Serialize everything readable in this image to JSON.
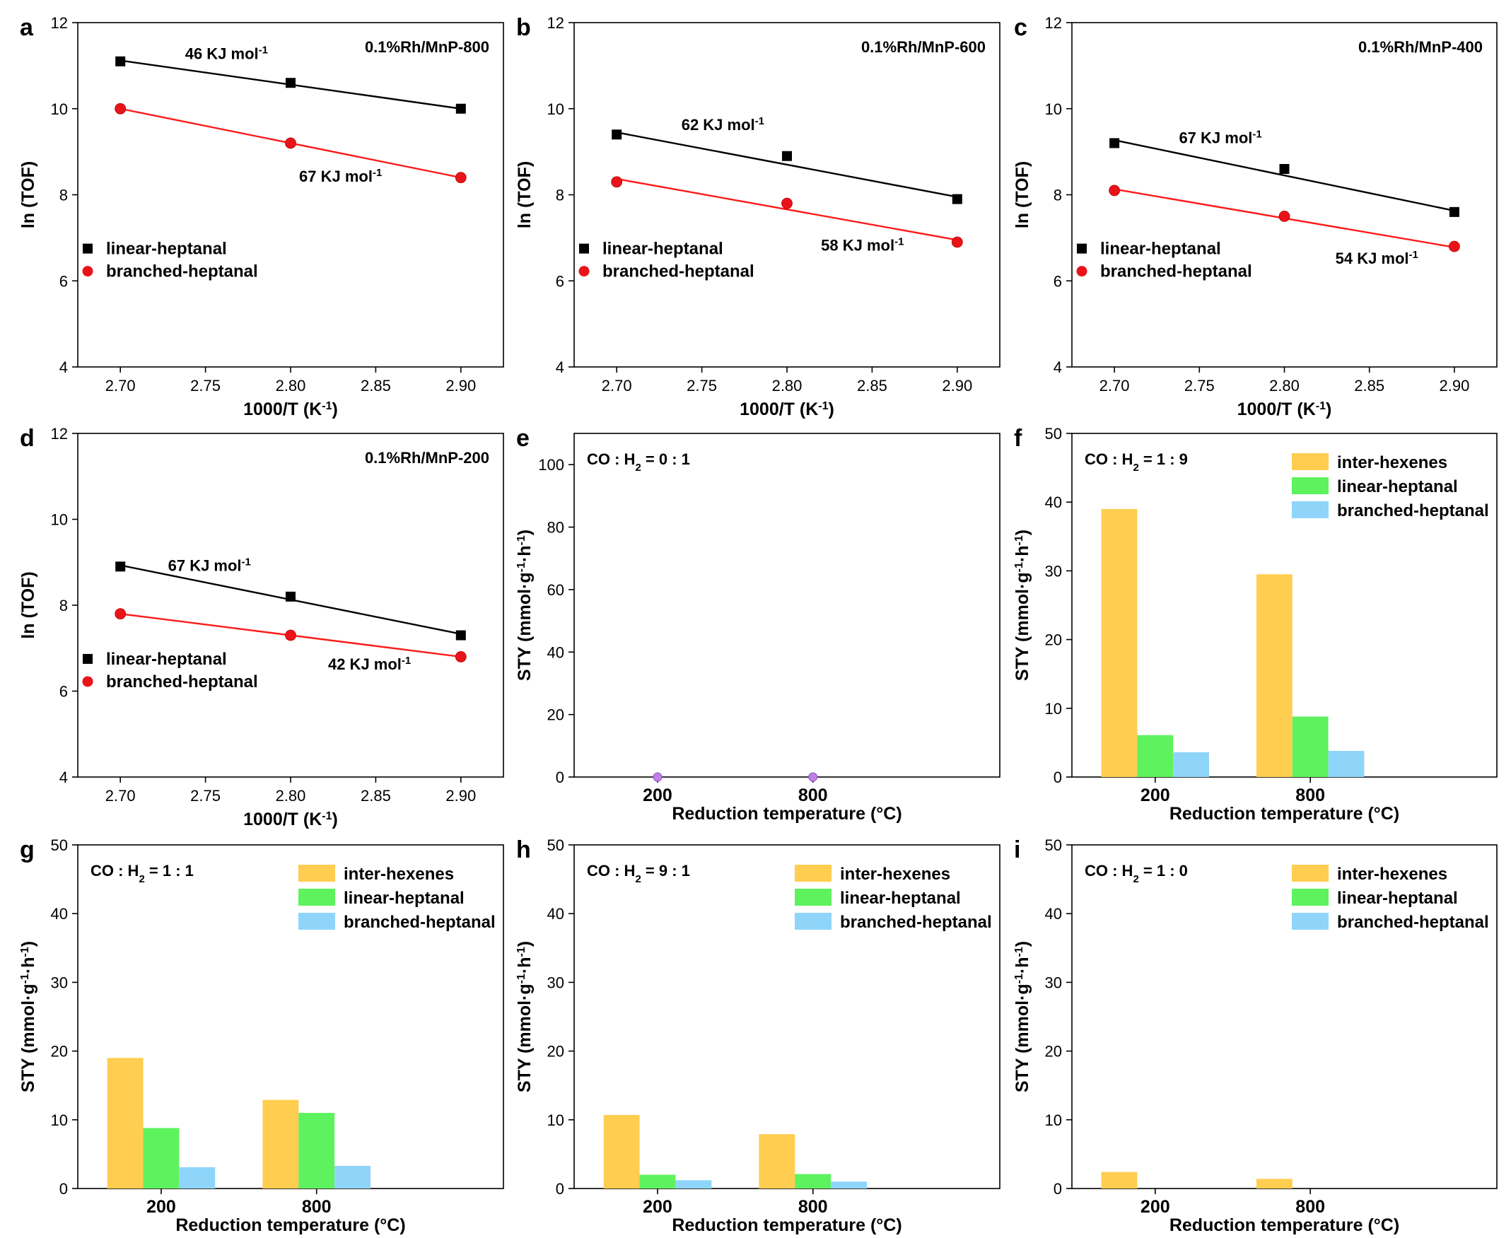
{
  "figure": {
    "colors": {
      "linear_marker": "#000000",
      "branched_marker": "#e8141a",
      "fit_linear": "#000000",
      "fit_branched": "#ff1a1a",
      "inter_hexenes": "#ffcd4f",
      "linear_heptanal": "#5ef25e",
      "branched_heptanal": "#8fd5fa",
      "zero_marker": "#c27fe8"
    }
  },
  "chart_data": [
    {
      "panel": "a",
      "type": "scatter",
      "sample_label": "0.1%Rh/MnP-800",
      "xlabel": "1000/T (K",
      "xlabel_sup": "-1",
      "xlabel_tail": ")",
      "ylabel": "ln (TOF)",
      "xlim": [
        2.675,
        2.925
      ],
      "ylim": [
        4,
        12
      ],
      "xticks": [
        "2.70",
        "2.75",
        "2.80",
        "2.85",
        "2.90"
      ],
      "yticks": [
        "4",
        "6",
        "8",
        "10",
        "12"
      ],
      "legend_position": "lower-left",
      "series": [
        {
          "name": "linear-heptanal",
          "x": [
            2.7,
            2.8,
            2.9
          ],
          "y": [
            11.1,
            10.6,
            10.0
          ],
          "fit": [
            11.12,
            10.0
          ]
        },
        {
          "name": "branched-heptanal",
          "x": [
            2.7,
            2.8,
            2.9
          ],
          "y": [
            10.0,
            9.2,
            8.4
          ],
          "fit": [
            10.0,
            8.4
          ]
        }
      ],
      "annotations": [
        {
          "text": "46 KJ mol",
          "sup": "-1",
          "x": 2.738,
          "y": 11.15
        },
        {
          "text": "67 KJ mol",
          "sup": "-1",
          "x": 2.805,
          "y": 8.3
        }
      ]
    },
    {
      "panel": "b",
      "type": "scatter",
      "sample_label": "0.1%Rh/MnP-600",
      "xlabel": "1000/T (K",
      "xlabel_sup": "-1",
      "xlabel_tail": ")",
      "ylabel": "ln (TOF)",
      "xlim": [
        2.675,
        2.925
      ],
      "ylim": [
        4,
        12
      ],
      "xticks": [
        "2.70",
        "2.75",
        "2.80",
        "2.85",
        "2.90"
      ],
      "yticks": [
        "4",
        "6",
        "8",
        "10",
        "12"
      ],
      "legend_position": "lower-left",
      "series": [
        {
          "name": "linear-heptanal",
          "x": [
            2.7,
            2.8,
            2.9
          ],
          "y": [
            9.4,
            8.9,
            7.9
          ],
          "fit": [
            9.45,
            7.95
          ]
        },
        {
          "name": "branched-heptanal",
          "x": [
            2.7,
            2.8,
            2.9
          ],
          "y": [
            8.3,
            7.8,
            6.9
          ],
          "fit": [
            8.37,
            6.95
          ]
        }
      ],
      "annotations": [
        {
          "text": "62 KJ mol",
          "sup": "-1",
          "x": 2.738,
          "y": 9.5
        },
        {
          "text": "58   KJ mol",
          "sup": "-1",
          "x": 2.82,
          "y": 6.7
        }
      ]
    },
    {
      "panel": "c",
      "type": "scatter",
      "sample_label": "0.1%Rh/MnP-400",
      "xlabel": "1000/T (K",
      "xlabel_sup": "-1",
      "xlabel_tail": ")",
      "ylabel": "ln (TOF)",
      "xlim": [
        2.675,
        2.925
      ],
      "ylim": [
        4,
        12
      ],
      "xticks": [
        "2.70",
        "2.75",
        "2.80",
        "2.85",
        "2.90"
      ],
      "yticks": [
        "4",
        "6",
        "8",
        "10",
        "12"
      ],
      "legend_position": "lower-left",
      "series": [
        {
          "name": "linear-heptanal",
          "x": [
            2.7,
            2.8,
            2.9
          ],
          "y": [
            9.2,
            8.6,
            7.6
          ],
          "fit": [
            9.27,
            7.63
          ]
        },
        {
          "name": "branched-heptanal",
          "x": [
            2.7,
            2.8,
            2.9
          ],
          "y": [
            8.1,
            7.5,
            6.8
          ],
          "fit": [
            8.13,
            6.78
          ]
        }
      ],
      "annotations": [
        {
          "text": "67 KJ mol",
          "sup": "-1",
          "x": 2.738,
          "y": 9.2
        },
        {
          "text": "54 KJ mol",
          "sup": "-1",
          "x": 2.83,
          "y": 6.4
        }
      ]
    },
    {
      "panel": "d",
      "type": "scatter",
      "sample_label": "0.1%Rh/MnP-200",
      "xlabel": "1000/T (K",
      "xlabel_sup": "-1",
      "xlabel_tail": ")",
      "ylabel": "ln (TOF)",
      "xlim": [
        2.675,
        2.925
      ],
      "ylim": [
        4,
        12
      ],
      "xticks": [
        "2.70",
        "2.75",
        "2.80",
        "2.85",
        "2.90"
      ],
      "yticks": [
        "4",
        "6",
        "8",
        "10",
        "12"
      ],
      "legend_position": "lower-left",
      "series": [
        {
          "name": "linear-heptanal",
          "x": [
            2.7,
            2.8,
            2.9
          ],
          "y": [
            8.9,
            8.2,
            7.3
          ],
          "fit": [
            8.93,
            7.33
          ]
        },
        {
          "name": "branched-heptanal",
          "x": [
            2.7,
            2.8,
            2.9
          ],
          "y": [
            7.8,
            7.3,
            6.8
          ],
          "fit": [
            7.8,
            6.8
          ]
        }
      ],
      "annotations": [
        {
          "text": "67 KJ mol",
          "sup": "-1",
          "x": 2.728,
          "y": 8.8
        },
        {
          "text": "42 KJ mol",
          "sup": "-1",
          "x": 2.822,
          "y": 6.5
        }
      ]
    },
    {
      "panel": "e",
      "type": "bar",
      "condition": "CO : H",
      "condition_sub": "2",
      "condition_tail": " = 0 : 1",
      "xlabel": "Reduction temperature (°C)",
      "ylabel_parts": [
        "STY (mmol·g",
        "-1",
        "·h",
        "-1",
        ")"
      ],
      "categories": [
        "200",
        "800"
      ],
      "ylim": [
        0,
        110
      ],
      "yticks": [
        "0",
        "20",
        "40",
        "60",
        "80",
        "100"
      ],
      "series": [
        {
          "name": "",
          "values": [
            0,
            0
          ],
          "style": "zero_marker"
        }
      ],
      "legend_position": "none"
    },
    {
      "panel": "f",
      "type": "bar",
      "condition": "CO : H",
      "condition_sub": "2",
      "condition_tail": " = 1 : 9",
      "xlabel": "Reduction temperature (°C)",
      "ylabel_parts": [
        "STY (mmol·g",
        "-1",
        "·h",
        "-1",
        ")"
      ],
      "categories": [
        "200",
        "800"
      ],
      "ylim": [
        0,
        50
      ],
      "yticks": [
        "0",
        "10",
        "20",
        "30",
        "40",
        "50"
      ],
      "series": [
        {
          "name": "inter-hexenes",
          "values": [
            39.0,
            29.5
          ]
        },
        {
          "name": "linear-heptanal",
          "values": [
            6.1,
            8.8
          ]
        },
        {
          "name": "branched-heptanal",
          "values": [
            3.6,
            3.8
          ]
        }
      ],
      "legend_position": "top-right"
    },
    {
      "panel": "g",
      "type": "bar",
      "condition": "CO : H",
      "condition_sub": "2",
      "condition_tail": " = 1 : 1",
      "xlabel": "Reduction temperature (°C)",
      "ylabel_parts": [
        "STY (mmol·g",
        "-1",
        "·h",
        "-1",
        ")"
      ],
      "categories": [
        "200",
        "800"
      ],
      "ylim": [
        0,
        50
      ],
      "yticks": [
        "0",
        "10",
        "20",
        "30",
        "40",
        "50"
      ],
      "series": [
        {
          "name": "inter-hexenes",
          "values": [
            19.0,
            12.9
          ]
        },
        {
          "name": "linear-heptanal",
          "values": [
            8.8,
            11.0
          ]
        },
        {
          "name": "branched-heptanal",
          "values": [
            3.1,
            3.3
          ]
        }
      ],
      "legend_position": "top-right"
    },
    {
      "panel": "h",
      "type": "bar",
      "condition": "CO : H",
      "condition_sub": "2",
      "condition_tail": " = 9 : 1",
      "xlabel": "Reduction temperature (°C)",
      "ylabel_parts": [
        "STY (mmol·g",
        "-1",
        "·h",
        "-1",
        ")"
      ],
      "categories": [
        "200",
        "800"
      ],
      "ylim": [
        0,
        50
      ],
      "yticks": [
        "0",
        "10",
        "20",
        "30",
        "40",
        "50"
      ],
      "series": [
        {
          "name": "inter-hexenes",
          "values": [
            10.7,
            7.9
          ]
        },
        {
          "name": "linear-heptanal",
          "values": [
            2.0,
            2.1
          ]
        },
        {
          "name": "branched-heptanal",
          "values": [
            1.2,
            1.0
          ]
        }
      ],
      "legend_position": "top-right"
    },
    {
      "panel": "i",
      "type": "bar",
      "condition": "CO : H",
      "condition_sub": "2",
      "condition_tail": " = 1 : 0",
      "xlabel": "Reduction temperature (°C)",
      "ylabel_parts": [
        "STY (mmol·g",
        "-1",
        "·h",
        "-1",
        ")"
      ],
      "categories": [
        "200",
        "800"
      ],
      "ylim": [
        0,
        50
      ],
      "yticks": [
        "0",
        "10",
        "20",
        "30",
        "40",
        "50"
      ],
      "series": [
        {
          "name": "inter-hexenes",
          "values": [
            2.4,
            1.4
          ]
        },
        {
          "name": "linear-heptanal",
          "values": [
            0,
            0
          ]
        },
        {
          "name": "branched-heptanal",
          "values": [
            0,
            0
          ]
        }
      ],
      "legend_position": "top-right"
    }
  ]
}
